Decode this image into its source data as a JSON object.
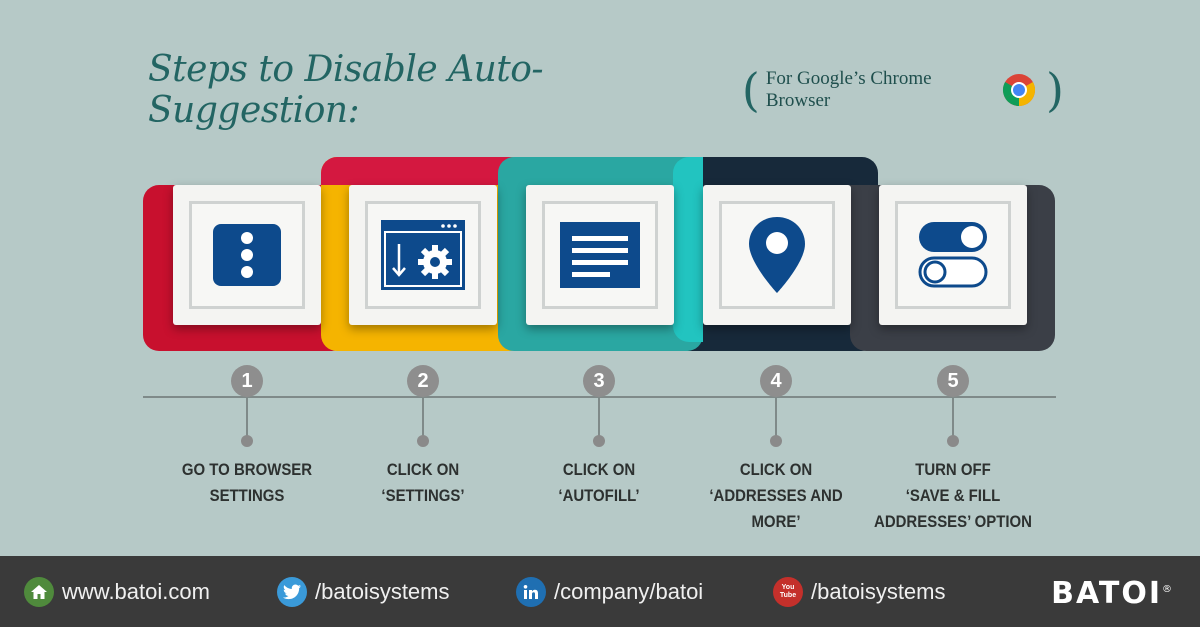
{
  "title": {
    "main": "Steps to Disable Auto-Suggestion:",
    "open_paren": "(",
    "sub": "For Google’s Chrome Browser",
    "close_paren": ")",
    "chrome_icon": "chrome-logo-icon"
  },
  "colors": {
    "background": "#b6c9c7",
    "title": "#236563",
    "icon_blue": "#0d4a8c",
    "red": "#c8102e",
    "yellow": "#f5b400",
    "teal": "#2aa7a2",
    "navy": "#17293a",
    "gray": "#3b3f47",
    "footer": "#3a3a3a"
  },
  "steps": [
    {
      "number": "1",
      "icon": "menu-dots-icon",
      "line1": "GO TO BROWSER",
      "line2": "SETTINGS",
      "line3": ""
    },
    {
      "number": "2",
      "icon": "settings-window-icon",
      "line1": "CLICK ON",
      "line2": "‘SETTINGS’",
      "line3": ""
    },
    {
      "number": "3",
      "icon": "autofill-lines-icon",
      "line1": "CLICK ON",
      "line2": "‘AUTOFILL’",
      "line3": ""
    },
    {
      "number": "4",
      "icon": "location-pin-icon",
      "line1": "CLICK ON",
      "line2": "‘ADDRESSES AND MORE’",
      "line3": ""
    },
    {
      "number": "5",
      "icon": "toggle-switch-icon",
      "line1": "TURN OFF",
      "line2": "‘SAVE & FILL",
      "line3": "ADDRESSES’ OPTION"
    }
  ],
  "footer": {
    "website": "www.batoi.com",
    "twitter": "/batoisystems",
    "linkedin": "/company/batoi",
    "youtube": "/batoisystems",
    "youtube_badge": "You Tube",
    "brand": "BATOI",
    "brand_mark": "®"
  }
}
